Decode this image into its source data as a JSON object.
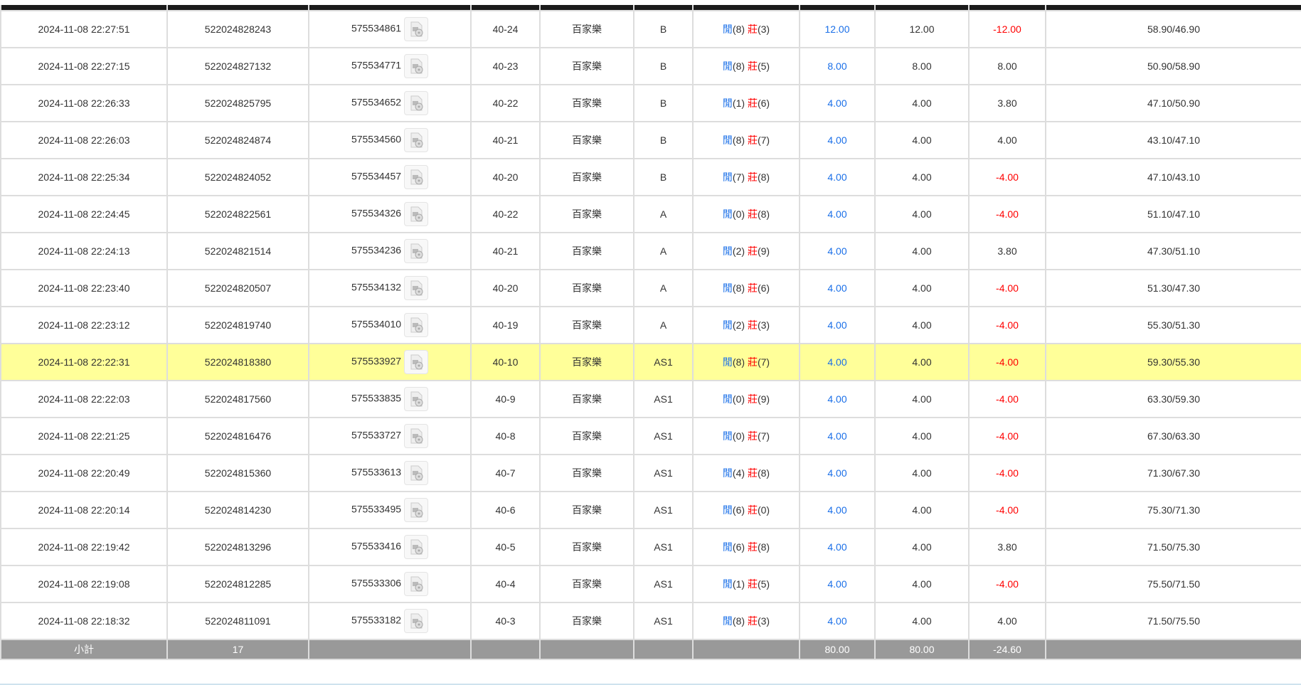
{
  "colors": {
    "blue": "#1a6fe8",
    "red": "#ff0000",
    "highlight": "#ffff99",
    "summary_bg": "#999999",
    "header_bg": "#1b1b1b"
  },
  "rows": [
    {
      "time": "2024-11-08 22:27:51",
      "bet_id": "522024828243",
      "round": "575534861",
      "shoe": "40-24",
      "game": "百家樂",
      "table": "B",
      "player": "閒",
      "player_pts": "(8)",
      "banker": "莊",
      "banker_pts": "(3)",
      "bet": "12.00",
      "valid": "12.00",
      "result": "-12.00",
      "result_neg": true,
      "balance": "58.90/46.90"
    },
    {
      "time": "2024-11-08 22:27:15",
      "bet_id": "522024827132",
      "round": "575534771",
      "shoe": "40-23",
      "game": "百家樂",
      "table": "B",
      "player": "閒",
      "player_pts": "(8)",
      "banker": "莊",
      "banker_pts": "(5)",
      "bet": "8.00",
      "valid": "8.00",
      "result": "8.00",
      "result_neg": false,
      "balance": "50.90/58.90"
    },
    {
      "time": "2024-11-08 22:26:33",
      "bet_id": "522024825795",
      "round": "575534652",
      "shoe": "40-22",
      "game": "百家樂",
      "table": "B",
      "player": "閒",
      "player_pts": "(1)",
      "banker": "莊",
      "banker_pts": "(6)",
      "bet": "4.00",
      "valid": "4.00",
      "result": "3.80",
      "result_neg": false,
      "balance": "47.10/50.90"
    },
    {
      "time": "2024-11-08 22:26:03",
      "bet_id": "522024824874",
      "round": "575534560",
      "shoe": "40-21",
      "game": "百家樂",
      "table": "B",
      "player": "閒",
      "player_pts": "(8)",
      "banker": "莊",
      "banker_pts": "(7)",
      "bet": "4.00",
      "valid": "4.00",
      "result": "4.00",
      "result_neg": false,
      "balance": "43.10/47.10"
    },
    {
      "time": "2024-11-08 22:25:34",
      "bet_id": "522024824052",
      "round": "575534457",
      "shoe": "40-20",
      "game": "百家樂",
      "table": "B",
      "player": "閒",
      "player_pts": "(7)",
      "banker": "莊",
      "banker_pts": "(8)",
      "bet": "4.00",
      "valid": "4.00",
      "result": "-4.00",
      "result_neg": true,
      "balance": "47.10/43.10"
    },
    {
      "time": "2024-11-08 22:24:45",
      "bet_id": "522024822561",
      "round": "575534326",
      "shoe": "40-22",
      "game": "百家樂",
      "table": "A",
      "player": "閒",
      "player_pts": "(0)",
      "banker": "莊",
      "banker_pts": "(8)",
      "bet": "4.00",
      "valid": "4.00",
      "result": "-4.00",
      "result_neg": true,
      "balance": "51.10/47.10"
    },
    {
      "time": "2024-11-08 22:24:13",
      "bet_id": "522024821514",
      "round": "575534236",
      "shoe": "40-21",
      "game": "百家樂",
      "table": "A",
      "player": "閒",
      "player_pts": "(2)",
      "banker": "莊",
      "banker_pts": "(9)",
      "bet": "4.00",
      "valid": "4.00",
      "result": "3.80",
      "result_neg": false,
      "balance": "47.30/51.10"
    },
    {
      "time": "2024-11-08 22:23:40",
      "bet_id": "522024820507",
      "round": "575534132",
      "shoe": "40-20",
      "game": "百家樂",
      "table": "A",
      "player": "閒",
      "player_pts": "(8)",
      "banker": "莊",
      "banker_pts": "(6)",
      "bet": "4.00",
      "valid": "4.00",
      "result": "-4.00",
      "result_neg": true,
      "balance": "51.30/47.30"
    },
    {
      "time": "2024-11-08 22:23:12",
      "bet_id": "522024819740",
      "round": "575534010",
      "shoe": "40-19",
      "game": "百家樂",
      "table": "A",
      "player": "閒",
      "player_pts": "(2)",
      "banker": "莊",
      "banker_pts": "(3)",
      "bet": "4.00",
      "valid": "4.00",
      "result": "-4.00",
      "result_neg": true,
      "balance": "55.30/51.30"
    },
    {
      "time": "2024-11-08 22:22:31",
      "bet_id": "522024818380",
      "round": "575533927",
      "shoe": "40-10",
      "game": "百家樂",
      "table": "AS1",
      "player": "閒",
      "player_pts": "(8)",
      "banker": "莊",
      "banker_pts": "(7)",
      "bet": "4.00",
      "valid": "4.00",
      "result": "-4.00",
      "result_neg": true,
      "balance": "59.30/55.30",
      "highlight": true
    },
    {
      "time": "2024-11-08 22:22:03",
      "bet_id": "522024817560",
      "round": "575533835",
      "shoe": "40-9",
      "game": "百家樂",
      "table": "AS1",
      "player": "閒",
      "player_pts": "(0)",
      "banker": "莊",
      "banker_pts": "(9)",
      "bet": "4.00",
      "valid": "4.00",
      "result": "-4.00",
      "result_neg": true,
      "balance": "63.30/59.30"
    },
    {
      "time": "2024-11-08 22:21:25",
      "bet_id": "522024816476",
      "round": "575533727",
      "shoe": "40-8",
      "game": "百家樂",
      "table": "AS1",
      "player": "閒",
      "player_pts": "(0)",
      "banker": "莊",
      "banker_pts": "(7)",
      "bet": "4.00",
      "valid": "4.00",
      "result": "-4.00",
      "result_neg": true,
      "balance": "67.30/63.30"
    },
    {
      "time": "2024-11-08 22:20:49",
      "bet_id": "522024815360",
      "round": "575533613",
      "shoe": "40-7",
      "game": "百家樂",
      "table": "AS1",
      "player": "閒",
      "player_pts": "(4)",
      "banker": "莊",
      "banker_pts": "(8)",
      "bet": "4.00",
      "valid": "4.00",
      "result": "-4.00",
      "result_neg": true,
      "balance": "71.30/67.30"
    },
    {
      "time": "2024-11-08 22:20:14",
      "bet_id": "522024814230",
      "round": "575533495",
      "shoe": "40-6",
      "game": "百家樂",
      "table": "AS1",
      "player": "閒",
      "player_pts": "(6)",
      "banker": "莊",
      "banker_pts": "(0)",
      "bet": "4.00",
      "valid": "4.00",
      "result": "-4.00",
      "result_neg": true,
      "balance": "75.30/71.30"
    },
    {
      "time": "2024-11-08 22:19:42",
      "bet_id": "522024813296",
      "round": "575533416",
      "shoe": "40-5",
      "game": "百家樂",
      "table": "AS1",
      "player": "閒",
      "player_pts": "(6)",
      "banker": "莊",
      "banker_pts": "(8)",
      "bet": "4.00",
      "valid": "4.00",
      "result": "3.80",
      "result_neg": false,
      "balance": "71.50/75.30"
    },
    {
      "time": "2024-11-08 22:19:08",
      "bet_id": "522024812285",
      "round": "575533306",
      "shoe": "40-4",
      "game": "百家樂",
      "table": "AS1",
      "player": "閒",
      "player_pts": "(1)",
      "banker": "莊",
      "banker_pts": "(5)",
      "bet": "4.00",
      "valid": "4.00",
      "result": "-4.00",
      "result_neg": true,
      "balance": "75.50/71.50"
    },
    {
      "time": "2024-11-08 22:18:32",
      "bet_id": "522024811091",
      "round": "575533182",
      "shoe": "40-3",
      "game": "百家樂",
      "table": "AS1",
      "player": "閒",
      "player_pts": "(8)",
      "banker": "莊",
      "banker_pts": "(3)",
      "bet": "4.00",
      "valid": "4.00",
      "result": "4.00",
      "result_neg": false,
      "balance": "71.50/75.50"
    }
  ],
  "summary": {
    "label": "小計",
    "count": "17",
    "bet_total": "80.00",
    "valid_total": "80.00",
    "result_total": "-24.60"
  }
}
